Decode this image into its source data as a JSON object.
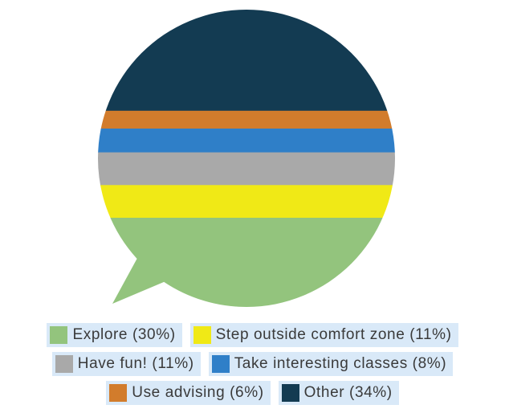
{
  "chart_data": {
    "type": "bar",
    "style": "speech-bubble stacked proportion chart",
    "categories": [
      "Explore",
      "Step outside comfort zone",
      "Have fun!",
      "Take interesting classes",
      "Use advising",
      "Other"
    ],
    "values": [
      30,
      11,
      11,
      8,
      6,
      34
    ],
    "unit": "%",
    "colors": [
      "#93c47d",
      "#f0e916",
      "#a9a9a9",
      "#2f7fc8",
      "#d27c2c",
      "#133b52"
    ],
    "legend": {
      "placement": "bottom",
      "entries": [
        {
          "label": "Explore (30%)",
          "color": "#93c47d"
        },
        {
          "label": "Step outside comfort zone (11%)",
          "color": "#f0e916"
        },
        {
          "label": "Have fun! (11%)",
          "color": "#a9a9a9"
        },
        {
          "label": "Take interesting classes (8%)",
          "color": "#2f7fc8"
        },
        {
          "label": "Use advising (6%)",
          "color": "#d27c2c"
        },
        {
          "label": "Other (34%)",
          "color": "#133b52"
        }
      ]
    }
  },
  "legend_bg": "#d9e9f8"
}
